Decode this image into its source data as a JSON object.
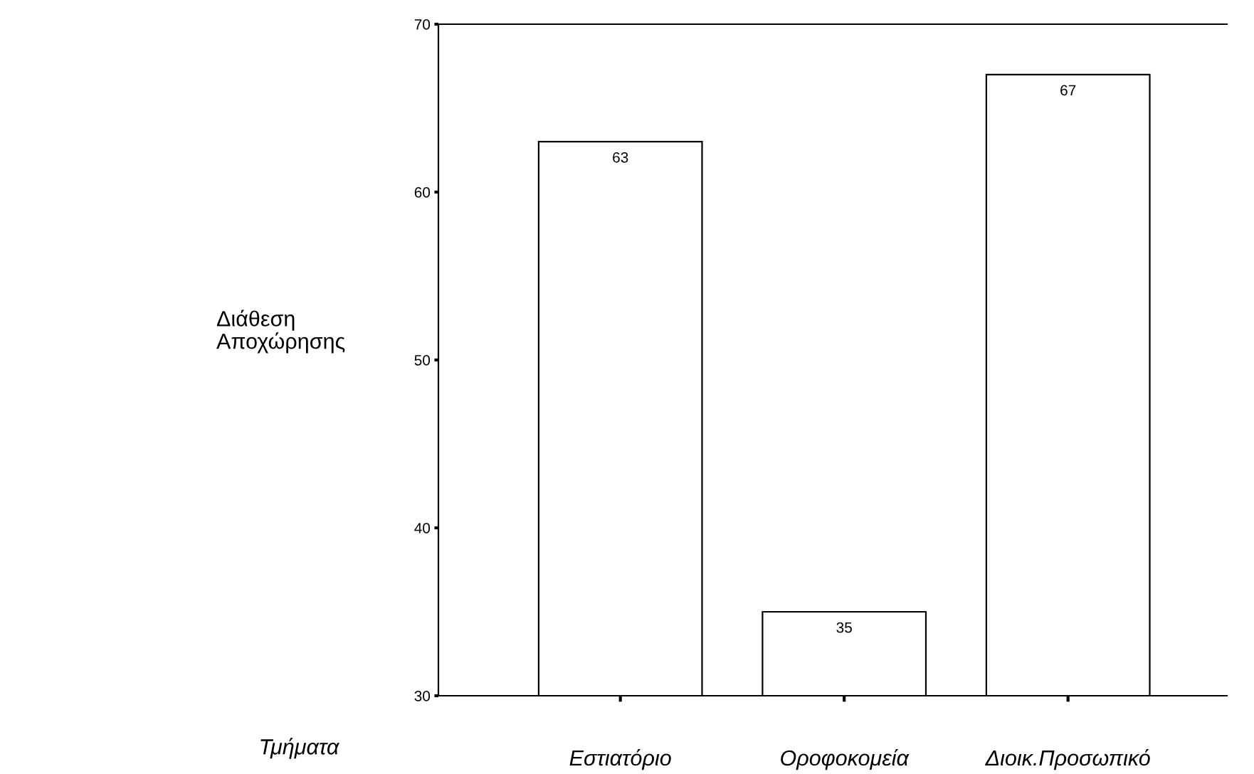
{
  "chart_data": {
    "type": "bar",
    "xlabel": "Τμήματα",
    "ylabel": "Διάθεση\nΑποχώρησης",
    "categories": [
      "Εστιατόριο",
      "Οροφοκομεία",
      "Διοικ.Προσωπικό"
    ],
    "values": [
      63,
      35,
      67
    ],
    "color": "#ffffff",
    "ylim": [
      30,
      70
    ],
    "yticks": [
      30,
      40,
      50,
      60,
      70
    ],
    "data_labels": true,
    "grid": false,
    "legend": false
  }
}
